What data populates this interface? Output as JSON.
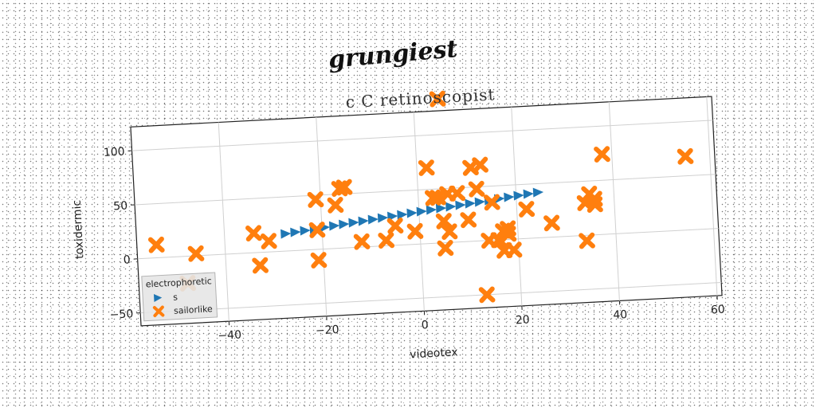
{
  "chart_data": {
    "type": "scatter",
    "suptitle": "grungiest",
    "title": "c C retinoscopist",
    "xlabel": "videotex",
    "ylabel": "toxidermic",
    "xlim": [
      -58,
      61
    ],
    "ylim": [
      -62,
      122
    ],
    "xticks": [
      -40,
      -20,
      0,
      20,
      40,
      60
    ],
    "yticks": [
      -50,
      0,
      50,
      100
    ],
    "grid": true,
    "legend": {
      "title": "electrophoretic",
      "placement": "lower-left"
    },
    "series": [
      {
        "name": "s",
        "marker": "triangle-right",
        "color": "#1f77b4",
        "x": [
          -27.5,
          -25.5,
          -23.5,
          -21.5,
          -19.5,
          -17.5,
          -15.5,
          -13.5,
          -11.5,
          -9.5,
          -7.5,
          -5.5,
          -3.5,
          -1.5,
          0.5,
          2.5,
          4.5,
          6.5,
          8.5,
          10.5,
          12.5,
          14.5,
          16.5,
          18.5,
          20.5,
          22.5,
          24.5
        ],
        "y": [
          16,
          17,
          18,
          19,
          20,
          21,
          22,
          23,
          24,
          25,
          26,
          27,
          28,
          29,
          30,
          31,
          32,
          33,
          34,
          35,
          36,
          37,
          38,
          39,
          40,
          41,
          42
        ]
      },
      {
        "name": "sailorlike",
        "marker": "x",
        "color": "#ff7f0e",
        "x": [
          5,
          -54,
          -46,
          -48,
          -34,
          -33,
          -31,
          -21,
          -21,
          -21,
          -17,
          -16,
          -15,
          -12,
          -7,
          -5,
          -1,
          2,
          3,
          4,
          5,
          5,
          6,
          6,
          8,
          10,
          11,
          12,
          13,
          13,
          14,
          15,
          16,
          17,
          17,
          18,
          19,
          18,
          22,
          27,
          34,
          34,
          35,
          36,
          36,
          38,
          55
        ],
        "y": [
          133,
          12,
          2,
          -25,
          18,
          -12,
          10,
          46,
          18,
          -10,
          40,
          55,
          56,
          5,
          5,
          18,
          12,
          70,
          42,
          42,
          -5,
          20,
          10,
          45,
          45,
          20,
          68,
          48,
          70,
          -50,
          0,
          35,
          0,
          8,
          -10,
          10,
          -10,
          5,
          27,
          13,
          30,
          -5,
          38,
          28,
          33,
          74,
          68
        ]
      }
    ]
  }
}
